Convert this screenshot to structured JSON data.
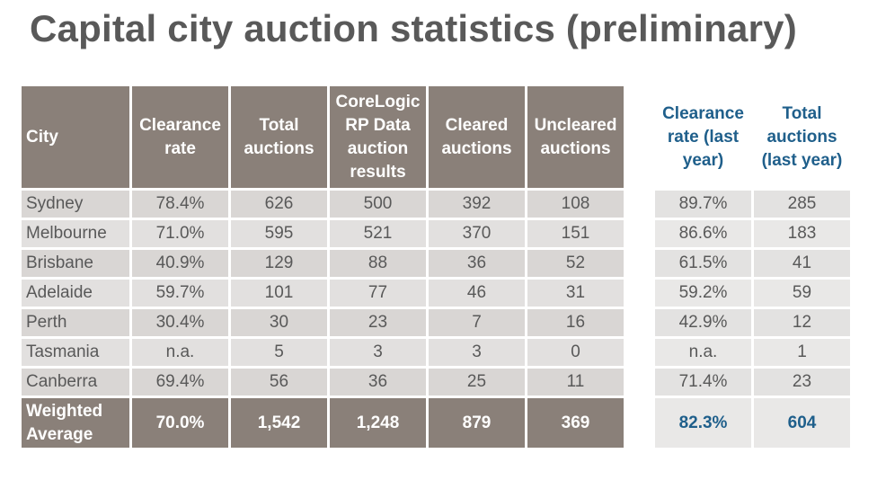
{
  "title": "Capital city auction statistics (preliminary)",
  "main_table": {
    "headers": [
      "City",
      "Clearance rate",
      "Total auctions",
      "CoreLogic RP Data auction results",
      "Cleared auctions",
      "Uncleared auctions"
    ],
    "rows": [
      [
        "Sydney",
        "78.4%",
        "626",
        "500",
        "392",
        "108"
      ],
      [
        "Melbourne",
        "71.0%",
        "595",
        "521",
        "370",
        "151"
      ],
      [
        "Brisbane",
        "40.9%",
        "129",
        "88",
        "36",
        "52"
      ],
      [
        "Adelaide",
        "59.7%",
        "101",
        "77",
        "46",
        "31"
      ],
      [
        "Perth",
        "30.4%",
        "30",
        "23",
        "7",
        "16"
      ],
      [
        "Tasmania",
        "n.a.",
        "5",
        "3",
        "3",
        "0"
      ],
      [
        "Canberra",
        "69.4%",
        "56",
        "36",
        "25",
        "11"
      ]
    ],
    "footer": [
      "Weighted Average",
      "70.0%",
      "1,542",
      "1,248",
      "879",
      "369"
    ]
  },
  "last_year_table": {
    "headers": [
      "Clearance rate (last year)",
      "Total auctions (last year)"
    ],
    "rows": [
      [
        "89.7%",
        "285"
      ],
      [
        "86.6%",
        "183"
      ],
      [
        "61.5%",
        "41"
      ],
      [
        "59.2%",
        "59"
      ],
      [
        "42.9%",
        "12"
      ],
      [
        "n.a.",
        "1"
      ],
      [
        "71.4%",
        "23"
      ]
    ],
    "footer": [
      "82.3%",
      "604"
    ]
  }
}
